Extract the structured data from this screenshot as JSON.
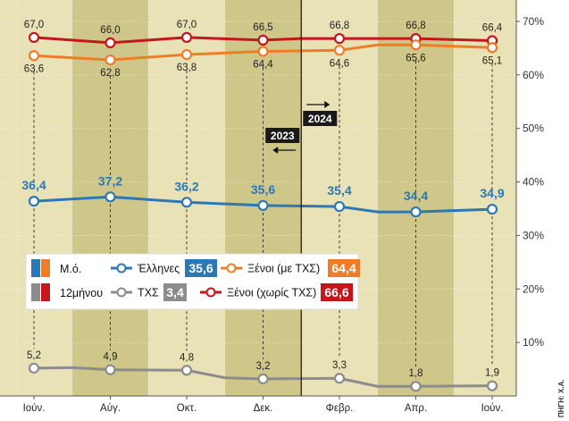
{
  "chart_data": {
    "type": "line",
    "categories": [
      "Ιούν.",
      "Αύγ.",
      "Οκτ.",
      "Δεκ.",
      "Φεβρ.",
      "Απρ.",
      "Ιούν."
    ],
    "y_axis": {
      "ticks": [
        "10%",
        "20%",
        "30%",
        "40%",
        "50%",
        "60%",
        "70%"
      ],
      "tick_values": [
        10,
        20,
        30,
        40,
        50,
        60,
        70
      ],
      "ylim": [
        0,
        74
      ],
      "position": "right"
    },
    "grid": "vertical-stripes",
    "series": [
      {
        "key": "xenoi_no_txs",
        "legend_label": "Ξένοι (χωρίς ΤΧΣ)",
        "legend_value": "66,6",
        "color": "#c4161c",
        "x": [
          0,
          1,
          2,
          3,
          3.5,
          4,
          5,
          6
        ],
        "values": [
          67.0,
          66.0,
          67.0,
          66.5,
          66.8,
          66.8,
          66.8,
          66.4
        ],
        "labels": [
          "67,0",
          "66,0",
          "67,0",
          "66,5",
          "",
          "66,8",
          "66,8",
          "66,4"
        ],
        "label_pos": "above",
        "label_style": "small"
      },
      {
        "key": "xenoi_txs",
        "legend_label": "Ξένοι (με ΤΧΣ)",
        "legend_value": "64,4",
        "color": "#f07c28",
        "x": [
          0,
          1,
          2,
          3,
          4,
          4.5,
          5,
          6
        ],
        "values": [
          63.6,
          62.8,
          63.8,
          64.4,
          64.6,
          65.6,
          65.6,
          65.1
        ],
        "labels": [
          "63,6",
          "62,8",
          "63,8",
          "64,4",
          "64,6",
          "",
          "65,6",
          "65,1"
        ],
        "label_pos": "below",
        "label_style": "small"
      },
      {
        "key": "ellines",
        "legend_label": "Έλληνες",
        "legend_value": "35,6",
        "color": "#2b78b4",
        "x": [
          0,
          1,
          2,
          3,
          4,
          4.5,
          5,
          6
        ],
        "values": [
          36.4,
          37.2,
          36.2,
          35.6,
          35.4,
          34.4,
          34.4,
          34.9
        ],
        "labels": [
          "36,4",
          "37,2",
          "36,2",
          "35,6",
          "35,4",
          "",
          "34,4",
          "34,9"
        ],
        "label_pos": "above",
        "label_style": "blue"
      },
      {
        "key": "txs",
        "legend_label": "ΤΧΣ",
        "legend_value": "3,4",
        "color": "#8c8c8c",
        "x": [
          0,
          0.5,
          1,
          2,
          2.5,
          3,
          4,
          4.5,
          5,
          6
        ],
        "values": [
          5.2,
          5.3,
          4.9,
          4.8,
          3.4,
          3.2,
          3.3,
          1.8,
          1.8,
          1.9
        ],
        "labels": [
          "5,2",
          "",
          "4,9",
          "4,8",
          "",
          "3,2",
          "3,3",
          "",
          "1,8",
          "1,9"
        ],
        "label_pos": "above",
        "label_style": "small"
      }
    ],
    "annotations": {
      "year_left": "2023",
      "year_right": "2024",
      "divider_after_category": 3.5
    },
    "legend": {
      "placement": "center-left",
      "type_labels": [
        "Μ.ό.",
        "12μήνου"
      ],
      "type_colors": [
        [
          "#2b78b4",
          "#f07c28"
        ],
        [
          "#8c8c8c",
          "#c4161c"
        ]
      ],
      "entries_order": [
        "ellines",
        "xenoi_txs",
        "txs",
        "xenoi_no_txs"
      ],
      "value_box_colors": {
        "ellines": "#2b78b4",
        "xenoi_txs": "#f07c28",
        "txs": "#8c8c8c",
        "xenoi_no_txs": "#c4161c"
      }
    },
    "source": "ΠΗΓΗ: Χ.Α."
  },
  "colors": {
    "stripe_light": "#e8e2b6",
    "stripe_dark": "#cfc68a",
    "axis_bg": "#ffffff",
    "legend_bg": "#ffffff"
  }
}
